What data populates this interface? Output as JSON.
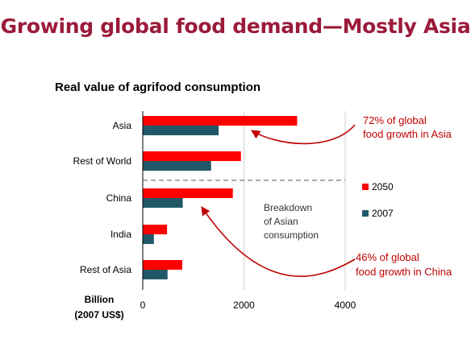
{
  "slide": {
    "title": "Growing global food demand—Mostly Asia"
  },
  "chart_data": {
    "type": "bar",
    "orientation": "horizontal",
    "title": "Real value of agrifood consumption",
    "xlabel": "Billion\n(2007 US$)",
    "xlim": [
      0,
      4000
    ],
    "xticks": [
      0,
      2000,
      4000
    ],
    "grid": true,
    "categories": [
      "Asia",
      "Rest of World",
      "China",
      "India",
      "Rest of Asia"
    ],
    "series": [
      {
        "name": "2050",
        "color": "#ff0000",
        "values": [
          3050,
          1940,
          1780,
          480,
          780
        ]
      },
      {
        "name": "2007",
        "color": "#215868",
        "values": [
          1500,
          1350,
          790,
          220,
          490
        ]
      }
    ],
    "legend_position": "right",
    "annotations": [
      {
        "text": "Breakdown\nof Asian\nconsumption",
        "color": "#333333"
      },
      {
        "text": "72% of global\nfood growth in Asia",
        "color": "#c00000",
        "points_to": "Asia"
      },
      {
        "text": "46% of global\nfood growth in China",
        "color": "#c00000",
        "points_to": "China"
      }
    ],
    "divider": {
      "style": "dashed",
      "between": [
        "Rest of World",
        "China"
      ]
    }
  }
}
